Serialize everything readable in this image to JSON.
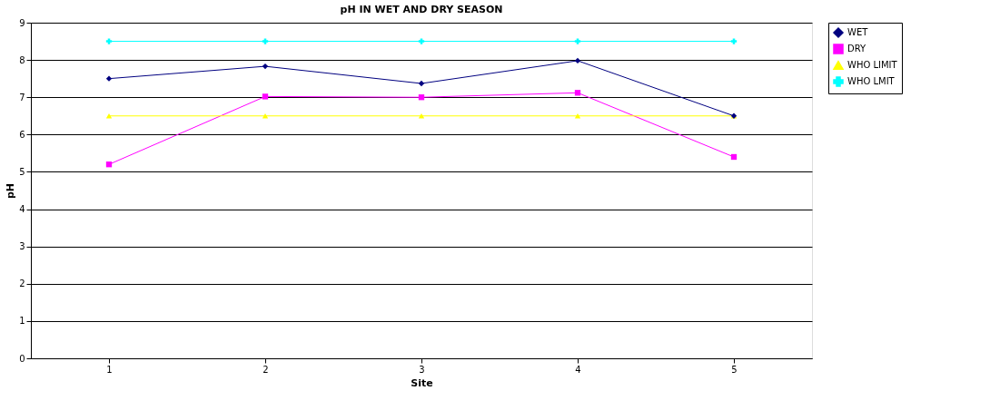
{
  "chart_data": {
    "type": "line",
    "title": "pH IN WET AND DRY SEASON",
    "xlabel": "Site",
    "ylabel": "pH",
    "categories": [
      "1",
      "2",
      "3",
      "4",
      "5"
    ],
    "series": [
      {
        "name": "WET",
        "color": "#000080",
        "marker": "diamond",
        "values": [
          7.5,
          7.83,
          7.37,
          7.98,
          6.5
        ]
      },
      {
        "name": "DRY",
        "color": "#ff00ff",
        "marker": "square",
        "values": [
          5.2,
          7.02,
          7.0,
          7.12,
          5.4
        ]
      },
      {
        "name": "WHO LIMIT",
        "color": "#ffff00",
        "marker": "triangle",
        "values": [
          6.5,
          6.5,
          6.5,
          6.5,
          6.5
        ]
      },
      {
        "name": "WHO LMIT",
        "color": "#00ffff",
        "marker": "cross",
        "values": [
          8.5,
          8.5,
          8.5,
          8.5,
          8.5
        ]
      }
    ],
    "ylim": [
      0,
      9
    ],
    "yticks": [
      0,
      1,
      2,
      3,
      4,
      5,
      6,
      7,
      8,
      9
    ],
    "grid": "y",
    "legend": "right",
    "line_style": "solid"
  }
}
